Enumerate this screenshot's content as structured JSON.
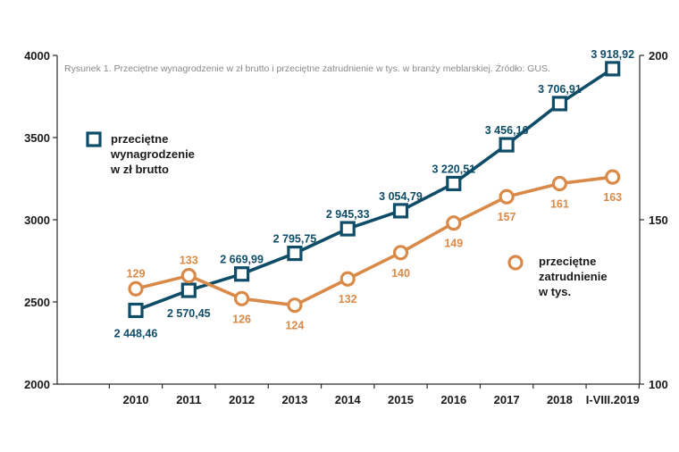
{
  "chart_data": {
    "type": "line",
    "title": "Rysunek 1. Przeciętne wynagrodzenie w zł brutto i przeciętne zatrudnienie w tys. w branży meblarskiej. Źródło: GUS.",
    "categories": [
      "2010",
      "2011",
      "2012",
      "2013",
      "2014",
      "2015",
      "2016",
      "2017",
      "2018",
      "I-VIII.2019"
    ],
    "left_axis": {
      "ylim": [
        2000,
        4000
      ],
      "ticks": [
        "2000",
        "2500",
        "3000",
        "3500",
        "4000"
      ]
    },
    "right_axis": {
      "ylim": [
        100,
        200
      ],
      "ticks": [
        "100",
        "150",
        "200"
      ]
    },
    "series": [
      {
        "name": "przeciętne wynagrodzenie w zł brutto",
        "legend_lines": [
          "przeciętne",
          "wynagrodzenie",
          "w zł brutto"
        ],
        "axis": "left",
        "marker": "square",
        "color": "#0f4c68",
        "values": [
          2448.46,
          2570.45,
          2669.99,
          2795.75,
          2945.33,
          3054.79,
          3220.51,
          3456.16,
          3706.91,
          3918.92
        ],
        "labels": [
          "2 448,46",
          "2 570,45",
          "2 669,99",
          "2 795,75",
          "2 945,33",
          "3 054,79",
          "3 220,51",
          "3 456,16",
          "3 706,91",
          "3 918,92"
        ]
      },
      {
        "name": "przeciętne zatrudnienie w tys.",
        "legend_lines": [
          "przeciętne",
          "zatrudnienie",
          "w tys."
        ],
        "axis": "right",
        "marker": "circle",
        "color": "#d98a48",
        "values": [
          129,
          133,
          126,
          124,
          132,
          140,
          149,
          157,
          161,
          163
        ],
        "labels": [
          "129",
          "133",
          "126",
          "124",
          "132",
          "140",
          "149",
          "157",
          "161",
          "163"
        ]
      }
    ]
  }
}
